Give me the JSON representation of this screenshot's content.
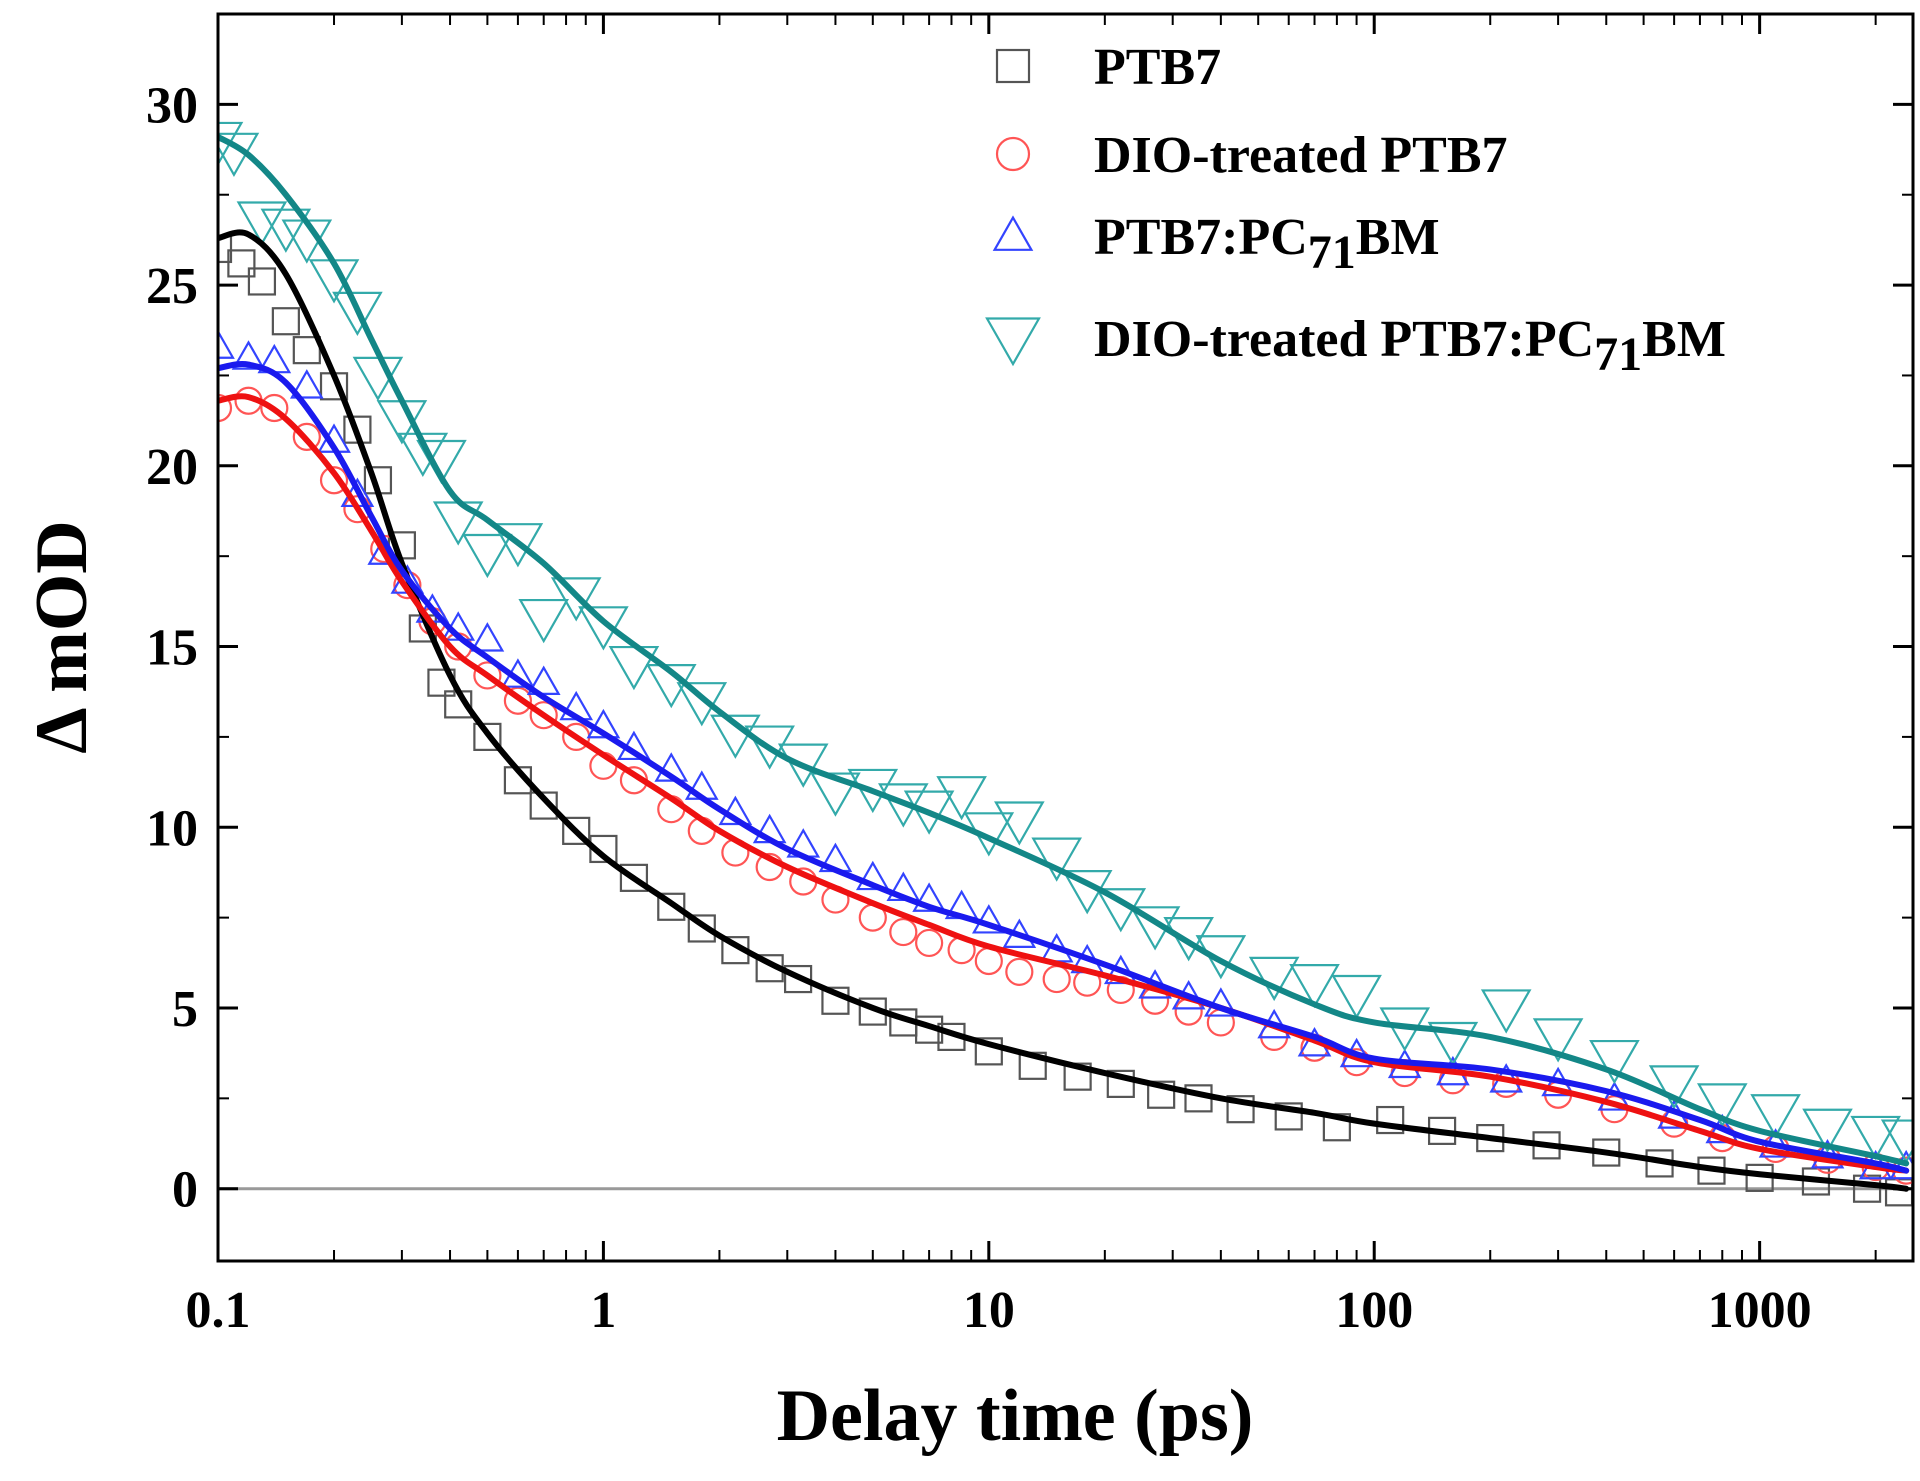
{
  "chart_data": {
    "type": "scatter",
    "xscale": "log",
    "xlabel": "Delay time (ps)",
    "ylabel": "Δ mOD",
    "xlim": [
      0.1,
      2500
    ],
    "ylim": [
      -2,
      32.5
    ],
    "xticks": [
      {
        "value": 0.1,
        "label": "0.1"
      },
      {
        "value": 1,
        "label": "1"
      },
      {
        "value": 10,
        "label": "10"
      },
      {
        "value": 100,
        "label": "100"
      },
      {
        "value": 1000,
        "label": "1000"
      }
    ],
    "yticks": [
      {
        "value": 0,
        "label": "0"
      },
      {
        "value": 5,
        "label": "5"
      },
      {
        "value": 10,
        "label": "10"
      },
      {
        "value": 15,
        "label": "15"
      },
      {
        "value": 20,
        "label": "20"
      },
      {
        "value": 25,
        "label": "25"
      },
      {
        "value": 30,
        "label": "30"
      }
    ],
    "zero_line": 0,
    "legend_position": "top-right",
    "series": [
      {
        "name": "PTB7",
        "legend": {
          "main": "PTB7"
        },
        "marker": "square",
        "marker_color": "#555555",
        "fit_color": "#000000",
        "fit": [
          [
            0.1,
            26.3
          ],
          [
            0.12,
            26.4
          ],
          [
            0.15,
            25.3
          ],
          [
            0.2,
            22.5
          ],
          [
            0.25,
            19.8
          ],
          [
            0.3,
            17.3
          ],
          [
            0.4,
            14.2
          ],
          [
            0.5,
            12.6
          ],
          [
            0.7,
            10.8
          ],
          [
            1,
            9.2
          ],
          [
            1.5,
            7.9
          ],
          [
            2,
            7.0
          ],
          [
            3,
            6.0
          ],
          [
            5,
            5.0
          ],
          [
            7,
            4.5
          ],
          [
            10,
            4.0
          ],
          [
            20,
            3.2
          ],
          [
            40,
            2.5
          ],
          [
            70,
            2.1
          ],
          [
            100,
            1.8
          ],
          [
            200,
            1.4
          ],
          [
            400,
            1.0
          ],
          [
            700,
            0.6
          ],
          [
            1000,
            0.4
          ],
          [
            2000,
            0.1
          ],
          [
            2400,
            0.0
          ]
        ],
        "points": [
          [
            0.1,
            26.0
          ],
          [
            0.115,
            25.6
          ],
          [
            0.13,
            25.1
          ],
          [
            0.15,
            24.0
          ],
          [
            0.17,
            23.2
          ],
          [
            0.2,
            22.2
          ],
          [
            0.23,
            21.0
          ],
          [
            0.26,
            19.6
          ],
          [
            0.3,
            17.8
          ],
          [
            0.34,
            15.5
          ],
          [
            0.38,
            14.0
          ],
          [
            0.42,
            13.4
          ],
          [
            0.5,
            12.5
          ],
          [
            0.6,
            11.3
          ],
          [
            0.7,
            10.6
          ],
          [
            0.85,
            9.9
          ],
          [
            1,
            9.4
          ],
          [
            1.2,
            8.6
          ],
          [
            1.5,
            7.8
          ],
          [
            1.8,
            7.2
          ],
          [
            2.2,
            6.6
          ],
          [
            2.7,
            6.1
          ],
          [
            3.2,
            5.8
          ],
          [
            4,
            5.2
          ],
          [
            5,
            4.9
          ],
          [
            6,
            4.6
          ],
          [
            7,
            4.4
          ],
          [
            8,
            4.2
          ],
          [
            10,
            3.8
          ],
          [
            13,
            3.4
          ],
          [
            17,
            3.1
          ],
          [
            22,
            2.9
          ],
          [
            28,
            2.6
          ],
          [
            35,
            2.5
          ],
          [
            45,
            2.2
          ],
          [
            60,
            2.0
          ],
          [
            80,
            1.7
          ],
          [
            110,
            1.9
          ],
          [
            150,
            1.6
          ],
          [
            200,
            1.4
          ],
          [
            280,
            1.2
          ],
          [
            400,
            1.0
          ],
          [
            550,
            0.7
          ],
          [
            750,
            0.5
          ],
          [
            1000,
            0.3
          ],
          [
            1400,
            0.2
          ],
          [
            1900,
            0.0
          ],
          [
            2300,
            -0.1
          ]
        ]
      },
      {
        "name": "DIO-treated PTB7",
        "legend": {
          "main": "DIO-treated PTB7"
        },
        "marker": "circle",
        "marker_color": "#ff5555",
        "fit_color": "#ee1111",
        "fit": [
          [
            0.1,
            21.8
          ],
          [
            0.12,
            21.9
          ],
          [
            0.15,
            21.3
          ],
          [
            0.2,
            19.8
          ],
          [
            0.25,
            18.2
          ],
          [
            0.3,
            16.8
          ],
          [
            0.4,
            15.0
          ],
          [
            0.5,
            14.2
          ],
          [
            0.7,
            13.1
          ],
          [
            1,
            12.0
          ],
          [
            1.5,
            10.8
          ],
          [
            2,
            9.9
          ],
          [
            3,
            8.9
          ],
          [
            5,
            7.9
          ],
          [
            7,
            7.3
          ],
          [
            10,
            6.7
          ],
          [
            20,
            5.9
          ],
          [
            40,
            5.0
          ],
          [
            70,
            4.1
          ],
          [
            100,
            3.5
          ],
          [
            200,
            3.1
          ],
          [
            400,
            2.4
          ],
          [
            700,
            1.6
          ],
          [
            1000,
            1.1
          ],
          [
            2000,
            0.6
          ],
          [
            2400,
            0.5
          ]
        ],
        "points": [
          [
            0.1,
            21.6
          ],
          [
            0.12,
            21.8
          ],
          [
            0.14,
            21.6
          ],
          [
            0.17,
            20.8
          ],
          [
            0.2,
            19.6
          ],
          [
            0.23,
            18.8
          ],
          [
            0.27,
            17.7
          ],
          [
            0.31,
            16.7
          ],
          [
            0.36,
            15.7
          ],
          [
            0.42,
            15.0
          ],
          [
            0.5,
            14.2
          ],
          [
            0.6,
            13.5
          ],
          [
            0.7,
            13.1
          ],
          [
            0.85,
            12.5
          ],
          [
            1,
            11.7
          ],
          [
            1.2,
            11.3
          ],
          [
            1.5,
            10.5
          ],
          [
            1.8,
            9.9
          ],
          [
            2.2,
            9.3
          ],
          [
            2.7,
            8.9
          ],
          [
            3.3,
            8.5
          ],
          [
            4,
            8.0
          ],
          [
            5,
            7.5
          ],
          [
            6,
            7.1
          ],
          [
            7,
            6.8
          ],
          [
            8.5,
            6.6
          ],
          [
            10,
            6.3
          ],
          [
            12,
            6.0
          ],
          [
            15,
            5.8
          ],
          [
            18,
            5.7
          ],
          [
            22,
            5.5
          ],
          [
            27,
            5.2
          ],
          [
            33,
            4.9
          ],
          [
            40,
            4.6
          ],
          [
            55,
            4.2
          ],
          [
            70,
            3.9
          ],
          [
            90,
            3.5
          ],
          [
            120,
            3.2
          ],
          [
            160,
            3.0
          ],
          [
            220,
            2.9
          ],
          [
            300,
            2.6
          ],
          [
            420,
            2.2
          ],
          [
            600,
            1.8
          ],
          [
            800,
            1.4
          ],
          [
            1100,
            1.1
          ],
          [
            1500,
            0.8
          ],
          [
            2000,
            0.6
          ],
          [
            2400,
            0.5
          ]
        ]
      },
      {
        "name": "PTB7:PC71BM",
        "legend": {
          "main": "PTB7:PC",
          "sub": "71",
          "tail": "BM"
        },
        "marker": "triangle-up",
        "marker_color": "#3344ff",
        "fit_color": "#1a1aee",
        "fit": [
          [
            0.1,
            22.7
          ],
          [
            0.12,
            22.8
          ],
          [
            0.15,
            22.3
          ],
          [
            0.2,
            20.5
          ],
          [
            0.25,
            18.6
          ],
          [
            0.3,
            17.1
          ],
          [
            0.4,
            15.5
          ],
          [
            0.5,
            14.7
          ],
          [
            0.7,
            13.6
          ],
          [
            1,
            12.6
          ],
          [
            1.5,
            11.4
          ],
          [
            2,
            10.5
          ],
          [
            3,
            9.4
          ],
          [
            5,
            8.4
          ],
          [
            7,
            7.8
          ],
          [
            10,
            7.3
          ],
          [
            20,
            6.2
          ],
          [
            40,
            5.0
          ],
          [
            70,
            4.2
          ],
          [
            100,
            3.6
          ],
          [
            200,
            3.3
          ],
          [
            400,
            2.7
          ],
          [
            700,
            1.9
          ],
          [
            1000,
            1.3
          ],
          [
            2000,
            0.7
          ],
          [
            2400,
            0.5
          ]
        ],
        "points": [
          [
            0.1,
            23.3
          ],
          [
            0.12,
            23.0
          ],
          [
            0.14,
            22.9
          ],
          [
            0.17,
            22.2
          ],
          [
            0.2,
            20.7
          ],
          [
            0.23,
            19.2
          ],
          [
            0.27,
            17.6
          ],
          [
            0.31,
            16.8
          ],
          [
            0.36,
            16.0
          ],
          [
            0.42,
            15.5
          ],
          [
            0.5,
            15.2
          ],
          [
            0.6,
            14.2
          ],
          [
            0.7,
            14.0
          ],
          [
            0.85,
            13.3
          ],
          [
            1,
            12.8
          ],
          [
            1.2,
            12.2
          ],
          [
            1.5,
            11.6
          ],
          [
            1.8,
            11.1
          ],
          [
            2.2,
            10.4
          ],
          [
            2.7,
            9.9
          ],
          [
            3.3,
            9.5
          ],
          [
            4,
            9.1
          ],
          [
            5,
            8.6
          ],
          [
            6,
            8.3
          ],
          [
            7,
            8.0
          ],
          [
            8.5,
            7.8
          ],
          [
            10,
            7.4
          ],
          [
            12,
            7.0
          ],
          [
            15,
            6.6
          ],
          [
            18,
            6.3
          ],
          [
            22,
            6.0
          ],
          [
            27,
            5.6
          ],
          [
            33,
            5.3
          ],
          [
            40,
            5.1
          ],
          [
            55,
            4.5
          ],
          [
            70,
            4.0
          ],
          [
            90,
            3.7
          ],
          [
            120,
            3.4
          ],
          [
            160,
            3.2
          ],
          [
            220,
            3.0
          ],
          [
            300,
            2.9
          ],
          [
            420,
            2.5
          ],
          [
            600,
            2.0
          ],
          [
            800,
            1.6
          ],
          [
            1100,
            1.2
          ],
          [
            1500,
            0.9
          ],
          [
            2000,
            0.6
          ],
          [
            2400,
            0.6
          ]
        ]
      },
      {
        "name": "DIO-treated PTB7:PC71BM",
        "legend": {
          "main": "DIO-treated PTB7:PC",
          "sub": "71",
          "tail": "BM"
        },
        "marker": "triangle-down",
        "marker_color": "#33aaaa",
        "fit_color": "#138787",
        "fit": [
          [
            0.1,
            29.1
          ],
          [
            0.12,
            28.6
          ],
          [
            0.15,
            27.5
          ],
          [
            0.2,
            25.6
          ],
          [
            0.25,
            23.5
          ],
          [
            0.3,
            21.8
          ],
          [
            0.4,
            19.3
          ],
          [
            0.5,
            18.5
          ],
          [
            0.7,
            17.3
          ],
          [
            1,
            15.7
          ],
          [
            1.5,
            14.3
          ],
          [
            2,
            13.2
          ],
          [
            3,
            11.9
          ],
          [
            5,
            11.0
          ],
          [
            7,
            10.4
          ],
          [
            10,
            9.7
          ],
          [
            20,
            8.2
          ],
          [
            40,
            6.3
          ],
          [
            70,
            5.1
          ],
          [
            100,
            4.6
          ],
          [
            200,
            4.2
          ],
          [
            400,
            3.3
          ],
          [
            700,
            2.2
          ],
          [
            1000,
            1.6
          ],
          [
            2000,
            0.9
          ],
          [
            2400,
            0.7
          ]
        ],
        "points": [
          [
            0.1,
            29.0
          ],
          [
            0.11,
            28.7
          ],
          [
            0.13,
            26.8
          ],
          [
            0.15,
            26.6
          ],
          [
            0.17,
            26.3
          ],
          [
            0.2,
            25.2
          ],
          [
            0.23,
            24.3
          ],
          [
            0.26,
            22.5
          ],
          [
            0.3,
            21.3
          ],
          [
            0.34,
            20.4
          ],
          [
            0.38,
            20.2
          ],
          [
            0.42,
            18.5
          ],
          [
            0.5,
            17.6
          ],
          [
            0.6,
            17.9
          ],
          [
            0.7,
            15.8
          ],
          [
            0.85,
            16.4
          ],
          [
            1,
            15.6
          ],
          [
            1.2,
            14.5
          ],
          [
            1.5,
            14.0
          ],
          [
            1.8,
            13.5
          ],
          [
            2.2,
            12.6
          ],
          [
            2.7,
            12.3
          ],
          [
            3.3,
            11.8
          ],
          [
            4,
            11.0
          ],
          [
            5,
            11.1
          ],
          [
            6,
            10.7
          ],
          [
            7,
            10.5
          ],
          [
            8.5,
            10.9
          ],
          [
            10,
            9.9
          ],
          [
            12,
            10.2
          ],
          [
            15,
            9.2
          ],
          [
            18,
            8.3
          ],
          [
            22,
            7.8
          ],
          [
            27,
            7.3
          ],
          [
            33,
            7.0
          ],
          [
            40,
            6.5
          ],
          [
            55,
            5.9
          ],
          [
            70,
            5.7
          ],
          [
            90,
            5.4
          ],
          [
            120,
            4.5
          ],
          [
            160,
            4.1
          ],
          [
            220,
            5.0
          ],
          [
            300,
            4.2
          ],
          [
            420,
            3.6
          ],
          [
            600,
            2.9
          ],
          [
            800,
            2.4
          ],
          [
            1100,
            2.1
          ],
          [
            1500,
            1.7
          ],
          [
            2000,
            1.5
          ],
          [
            2400,
            1.4
          ]
        ]
      }
    ]
  }
}
